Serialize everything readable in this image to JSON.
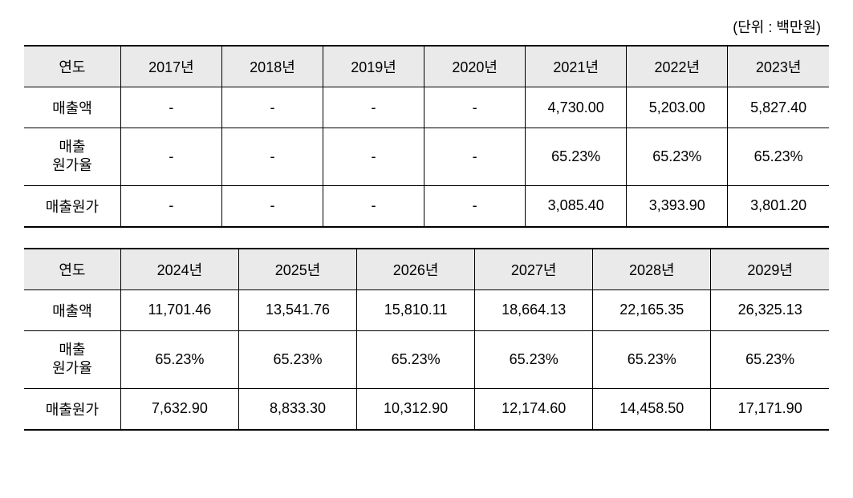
{
  "unit_label": "(단위  :  백만원)",
  "table1": {
    "headers": [
      "연도",
      "2017년",
      "2018년",
      "2019년",
      "2020년",
      "2021년",
      "2022년",
      "2023년"
    ],
    "rows": [
      {
        "label": "매출액",
        "values": [
          "-",
          "-",
          "-",
          "-",
          "4,730.00",
          "5,203.00",
          "5,827.40"
        ]
      },
      {
        "label": "매출\n원가율",
        "values": [
          "-",
          "-",
          "-",
          "-",
          "65.23%",
          "65.23%",
          "65.23%"
        ]
      },
      {
        "label": "매출원가",
        "values": [
          "-",
          "-",
          "-",
          "-",
          "3,085.40",
          "3,393.90",
          "3,801.20"
        ]
      }
    ]
  },
  "table2": {
    "headers": [
      "연도",
      "2024년",
      "2025년",
      "2026년",
      "2027년",
      "2028년",
      "2029년"
    ],
    "rows": [
      {
        "label": "매출액",
        "values": [
          "11,701.46",
          "13,541.76",
          "15,810.11",
          "18,664.13",
          "22,165.35",
          "26,325.13"
        ]
      },
      {
        "label": "매출\n원가율",
        "values": [
          "65.23%",
          "65.23%",
          "65.23%",
          "65.23%",
          "65.23%",
          "65.23%"
        ]
      },
      {
        "label": "매출원가",
        "values": [
          "7,632.90",
          "8,833.30",
          "10,312.90",
          "12,174.60",
          "14,458.50",
          "17,171.90"
        ]
      }
    ]
  },
  "styling": {
    "background_color": "#ffffff",
    "header_bg_color": "#eaeaea",
    "border_color": "#000000",
    "border_top_bottom_width": 2,
    "border_inner_width": 1,
    "font_size": 18,
    "font_family": "Malgun Gothic",
    "text_align": "center"
  }
}
